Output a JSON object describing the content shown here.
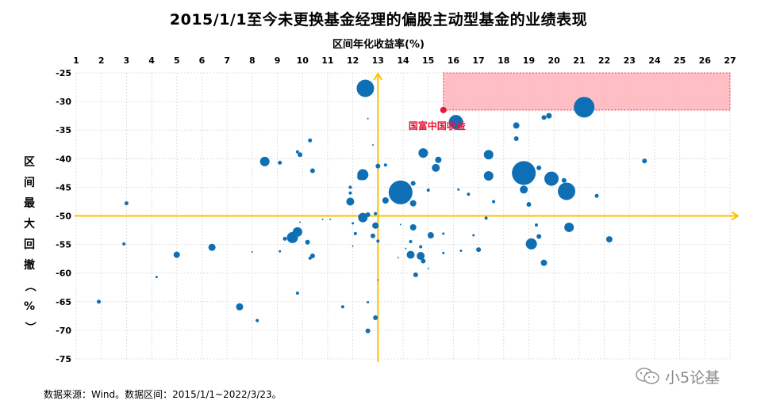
{
  "chart_data": {
    "type": "scatter",
    "title": "2015/1/1至今未更换基金经理的偏股主动型基金的业绩表现",
    "xlabel": "区间年化收益率(%)",
    "ylabel": "区间最大回撤（%）",
    "xlim": [
      1,
      27
    ],
    "ylim": [
      -75,
      -25
    ],
    "x_ticks": [
      1,
      2,
      3,
      4,
      5,
      6,
      7,
      8,
      9,
      10,
      11,
      12,
      13,
      14,
      15,
      16,
      17,
      18,
      19,
      20,
      21,
      22,
      23,
      24,
      25,
      26,
      27
    ],
    "y_ticks": [
      -25,
      -30,
      -35,
      -40,
      -45,
      -50,
      -55,
      -60,
      -65,
      -70,
      -75
    ],
    "grid": true,
    "reference_lines": {
      "x": 13,
      "y": -50,
      "color": "#FFC000"
    },
    "highlight_region": {
      "x": [
        15.6,
        27
      ],
      "y": [
        -31.5,
        -25
      ],
      "color": "#FFB3BA"
    },
    "annotation": {
      "label": "国富中国收益",
      "x": 15.6,
      "y": -31.5,
      "color": "#E8173A"
    },
    "point_color": "#0F6FB5",
    "points": [
      {
        "x": 12.5,
        "y": -27.7,
        "s": 11
      },
      {
        "x": 21.2,
        "y": -31.0,
        "s": 13
      },
      {
        "x": 16.1,
        "y": -33.6,
        "s": 9
      },
      {
        "x": 18.5,
        "y": -34.2,
        "s": 4
      },
      {
        "x": 19.6,
        "y": -32.8,
        "s": 3
      },
      {
        "x": 19.8,
        "y": -32.5,
        "s": 3.5
      },
      {
        "x": 12.6,
        "y": -33.0,
        "s": 1
      },
      {
        "x": 10.3,
        "y": -36.8,
        "s": 2.5
      },
      {
        "x": 18.5,
        "y": -36.5,
        "s": 3
      },
      {
        "x": 12.8,
        "y": -37.6,
        "s": 1
      },
      {
        "x": 9.8,
        "y": -38.8,
        "s": 2
      },
      {
        "x": 9.9,
        "y": -39.3,
        "s": 3
      },
      {
        "x": 14.8,
        "y": -39.0,
        "s": 6
      },
      {
        "x": 17.4,
        "y": -39.3,
        "s": 6
      },
      {
        "x": 8.5,
        "y": -40.5,
        "s": 6
      },
      {
        "x": 9.1,
        "y": -40.7,
        "s": 2.5
      },
      {
        "x": 15.4,
        "y": -40.2,
        "s": 4
      },
      {
        "x": 13.0,
        "y": -41.3,
        "s": 3
      },
      {
        "x": 13.3,
        "y": -41.1,
        "s": 2
      },
      {
        "x": 15.3,
        "y": -41.6,
        "s": 5
      },
      {
        "x": 10.4,
        "y": -42.1,
        "s": 3
      },
      {
        "x": 12.4,
        "y": -42.8,
        "s": 7
      },
      {
        "x": 12.3,
        "y": -43.2,
        "s": 4
      },
      {
        "x": 18.8,
        "y": -42.5,
        "s": 15
      },
      {
        "x": 19.4,
        "y": -41.6,
        "s": 3
      },
      {
        "x": 17.4,
        "y": -43.0,
        "s": 6
      },
      {
        "x": 19.9,
        "y": -43.5,
        "s": 9
      },
      {
        "x": 20.4,
        "y": -43.8,
        "s": 3
      },
      {
        "x": 11.9,
        "y": -45.0,
        "s": 2
      },
      {
        "x": 11.9,
        "y": -46.0,
        "s": 2
      },
      {
        "x": 13.9,
        "y": -45.9,
        "s": 15
      },
      {
        "x": 14.4,
        "y": -44.3,
        "s": 3
      },
      {
        "x": 15.0,
        "y": -45.5,
        "s": 2
      },
      {
        "x": 16.2,
        "y": -45.4,
        "s": 1.5
      },
      {
        "x": 16.6,
        "y": -46.2,
        "s": 2
      },
      {
        "x": 18.8,
        "y": -45.4,
        "s": 5
      },
      {
        "x": 20.5,
        "y": -45.7,
        "s": 11
      },
      {
        "x": 21.7,
        "y": -46.5,
        "s": 2.5
      },
      {
        "x": 11.9,
        "y": -47.5,
        "s": 5
      },
      {
        "x": 13.3,
        "y": -47.3,
        "s": 4
      },
      {
        "x": 14.4,
        "y": -47.8,
        "s": 4
      },
      {
        "x": 17.6,
        "y": -47.5,
        "s": 2
      },
      {
        "x": 19.0,
        "y": -48.0,
        "s": 3
      },
      {
        "x": 3.0,
        "y": -47.8,
        "s": 2.5
      },
      {
        "x": 23.6,
        "y": -40.4,
        "s": 3
      },
      {
        "x": 12.4,
        "y": -50.3,
        "s": 6
      },
      {
        "x": 12.6,
        "y": -49.8,
        "s": 3
      },
      {
        "x": 12.9,
        "y": -49.6,
        "s": 2
      },
      {
        "x": 10.8,
        "y": -50.6,
        "s": 1
      },
      {
        "x": 11.1,
        "y": -50.6,
        "s": 1
      },
      {
        "x": 9.9,
        "y": -51.1,
        "s": 1
      },
      {
        "x": 12.0,
        "y": -51.3,
        "s": 1.5
      },
      {
        "x": 12.9,
        "y": -51.7,
        "s": 4
      },
      {
        "x": 13.9,
        "y": -51.5,
        "s": 1
      },
      {
        "x": 14.4,
        "y": -52.0,
        "s": 4
      },
      {
        "x": 17.3,
        "y": -50.4,
        "s": 2
      },
      {
        "x": 19.3,
        "y": -51.6,
        "s": 2
      },
      {
        "x": 20.6,
        "y": -52.0,
        "s": 6
      },
      {
        "x": 9.8,
        "y": -52.8,
        "s": 6
      },
      {
        "x": 9.6,
        "y": -53.8,
        "s": 7
      },
      {
        "x": 9.3,
        "y": -54.0,
        "s": 2.5
      },
      {
        "x": 10.2,
        "y": -54.6,
        "s": 3
      },
      {
        "x": 12.1,
        "y": -53.1,
        "s": 2
      },
      {
        "x": 12.8,
        "y": -53.5,
        "s": 3
      },
      {
        "x": 13.0,
        "y": -54.4,
        "s": 2
      },
      {
        "x": 14.3,
        "y": -54.5,
        "s": 2
      },
      {
        "x": 15.1,
        "y": -53.4,
        "s": 4
      },
      {
        "x": 15.6,
        "y": -53.1,
        "s": 1.5
      },
      {
        "x": 16.8,
        "y": -53.4,
        "s": 1.5
      },
      {
        "x": 19.4,
        "y": -53.6,
        "s": 3
      },
      {
        "x": 22.2,
        "y": -54.1,
        "s": 4
      },
      {
        "x": 12.0,
        "y": -55.3,
        "s": 1
      },
      {
        "x": 14.1,
        "y": -55.7,
        "s": 1
      },
      {
        "x": 14.7,
        "y": -55.4,
        "s": 2
      },
      {
        "x": 15.6,
        "y": -56.5,
        "s": 1.5
      },
      {
        "x": 16.3,
        "y": -56.1,
        "s": 1.5
      },
      {
        "x": 17.0,
        "y": -55.9,
        "s": 3
      },
      {
        "x": 19.1,
        "y": -54.9,
        "s": 7
      },
      {
        "x": 14.3,
        "y": -56.8,
        "s": 5
      },
      {
        "x": 14.7,
        "y": -57.0,
        "s": 5
      },
      {
        "x": 14.8,
        "y": -57.9,
        "s": 3
      },
      {
        "x": 13.8,
        "y": -57.3,
        "s": 1
      },
      {
        "x": 10.4,
        "y": -57.0,
        "s": 3
      },
      {
        "x": 10.3,
        "y": -57.4,
        "s": 2
      },
      {
        "x": 19.6,
        "y": -58.2,
        "s": 4
      },
      {
        "x": 15.0,
        "y": -59.2,
        "s": 1
      },
      {
        "x": 6.4,
        "y": -55.5,
        "s": 4.5
      },
      {
        "x": 5.0,
        "y": -56.8,
        "s": 4
      },
      {
        "x": 2.9,
        "y": -54.9,
        "s": 2
      },
      {
        "x": 8.0,
        "y": -56.3,
        "s": 1
      },
      {
        "x": 9.1,
        "y": -56.2,
        "s": 1.5
      },
      {
        "x": 14.5,
        "y": -60.3,
        "s": 3
      },
      {
        "x": 13.0,
        "y": -61.2,
        "s": 1
      },
      {
        "x": 4.2,
        "y": -60.7,
        "s": 1.5
      },
      {
        "x": 9.8,
        "y": -63.5,
        "s": 2
      },
      {
        "x": 1.9,
        "y": -65.0,
        "s": 2.5
      },
      {
        "x": 7.5,
        "y": -65.9,
        "s": 4.5
      },
      {
        "x": 11.6,
        "y": -65.9,
        "s": 2
      },
      {
        "x": 12.6,
        "y": -65.1,
        "s": 1.5
      },
      {
        "x": 12.9,
        "y": -67.8,
        "s": 3
      },
      {
        "x": 8.2,
        "y": -68.3,
        "s": 2
      },
      {
        "x": 12.6,
        "y": -70.1,
        "s": 3
      }
    ]
  },
  "source_note": "数据来源：Wind。数据区间：2015/1/1~2022/3/23。",
  "watermark": "小5论基"
}
